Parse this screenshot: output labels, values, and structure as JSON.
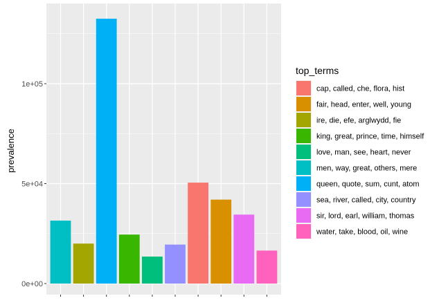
{
  "chart_data": {
    "type": "bar",
    "ylabel": "prevalence",
    "xlabel": "",
    "ylim": [
      0,
      134000
    ],
    "y_ticks": [
      {
        "value": 0,
        "label": "0e+00"
      },
      {
        "value": 50000,
        "label": "5e+04"
      },
      {
        "value": 100000,
        "label": "1e+05"
      }
    ],
    "grid": true,
    "legend_placement": "right",
    "legend_title": "top_terms",
    "legend": [
      {
        "name": "cap, called, che, flora, hist",
        "color": "#F8766D"
      },
      {
        "name": "fair, head, enter, well, young",
        "color": "#D89000"
      },
      {
        "name": "ire, die, efe, arglwydd, fie",
        "color": "#A3A500"
      },
      {
        "name": "king, great, prince, time, himself",
        "color": "#39B600"
      },
      {
        "name": "love, man, see, heart, never",
        "color": "#00BF7D"
      },
      {
        "name": "men, way, great, others, mere",
        "color": "#00BFC4"
      },
      {
        "name": "queen, quote, sum, cunt, atom",
        "color": "#00B0F6"
      },
      {
        "name": "sea, river, called, city, country",
        "color": "#9590FF"
      },
      {
        "name": "sir, lord, earl, william, thomas",
        "color": "#E76BF3"
      },
      {
        "name": "water, take, blood, oil, wine",
        "color": "#FF62BC"
      }
    ],
    "bars": [
      {
        "term": "men, way, great, others, mere",
        "value": 31500,
        "color": "#00BFC4"
      },
      {
        "term": "ire, die, efe, arglwydd, fie",
        "value": 20000,
        "color": "#A3A500"
      },
      {
        "term": "queen, quote, sum, cunt, atom",
        "value": 132500,
        "color": "#00B0F6"
      },
      {
        "term": "king, great, prince, time, himself",
        "value": 24500,
        "color": "#39B600"
      },
      {
        "term": "love, man, see, heart, never",
        "value": 13500,
        "color": "#00BF7D"
      },
      {
        "term": "sea, river, called, city, country",
        "value": 19500,
        "color": "#9590FF"
      },
      {
        "term": "cap, called, che, flora, hist",
        "value": 50500,
        "color": "#F8766D"
      },
      {
        "term": "fair, head, enter, well, young",
        "value": 42000,
        "color": "#D89000"
      },
      {
        "term": "sir, lord, earl, william, thomas",
        "value": 34500,
        "color": "#E76BF3"
      },
      {
        "term": "water, take, blood, oil, wine",
        "value": 16500,
        "color": "#FF62BC"
      }
    ]
  }
}
